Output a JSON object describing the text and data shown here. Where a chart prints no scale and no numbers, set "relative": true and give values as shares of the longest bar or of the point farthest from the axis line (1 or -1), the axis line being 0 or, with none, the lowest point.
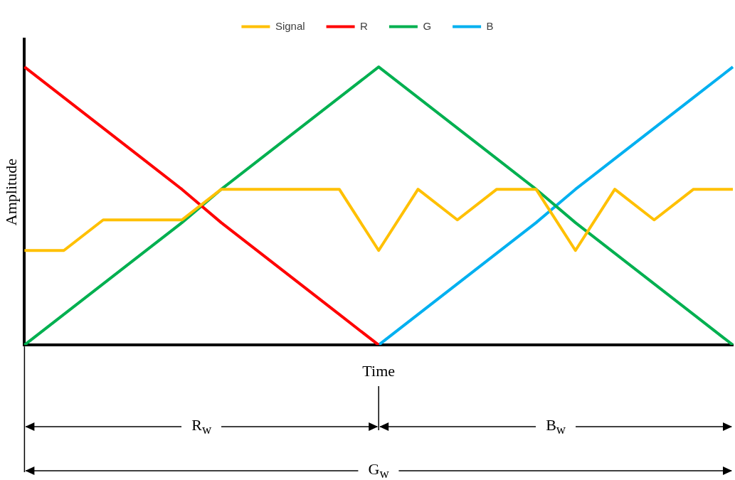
{
  "chart_data": {
    "type": "line",
    "relative": true,
    "legend": "top",
    "grid": false,
    "xlabel": "Time",
    "ylabel": "Amplitude",
    "categories": [
      null,
      null,
      null,
      null,
      null,
      null,
      null,
      null,
      null,
      null,
      null,
      null,
      null,
      null,
      null,
      null,
      null,
      null,
      null
    ],
    "series": [
      {
        "name": "Signal",
        "color": "#ffc000",
        "values": [
          0.34,
          0.34,
          0.45,
          0.45,
          0.45,
          0.56,
          0.56,
          0.56,
          0.56,
          0.34,
          0.56,
          0.45,
          0.56,
          0.56,
          0.34,
          0.56,
          0.45,
          0.56,
          0.56
        ]
      },
      {
        "name": "R",
        "color": "#ff0000",
        "values": [
          1,
          0.89,
          0.78,
          0.67,
          0.56,
          0.44,
          0.33,
          0.22,
          0.11,
          0,
          null,
          null,
          null,
          null,
          null,
          null,
          null,
          null,
          null
        ]
      },
      {
        "name": "G",
        "color": "#00b050",
        "values": [
          0,
          0.11,
          0.22,
          0.33,
          0.44,
          0.56,
          0.67,
          0.78,
          0.89,
          1,
          0.89,
          0.78,
          0.67,
          0.56,
          0.44,
          0.33,
          0.22,
          0.11,
          0
        ]
      },
      {
        "name": "B",
        "color": "#00b0f0",
        "values": [
          null,
          null,
          null,
          null,
          null,
          null,
          null,
          null,
          null,
          0,
          0.11,
          0.22,
          0.33,
          0.44,
          0.56,
          0.67,
          0.78,
          0.89,
          1
        ]
      }
    ],
    "annotations": [
      "R$_{w}$",
      "B$_{w}$",
      "G$_{w}$"
    ]
  }
}
